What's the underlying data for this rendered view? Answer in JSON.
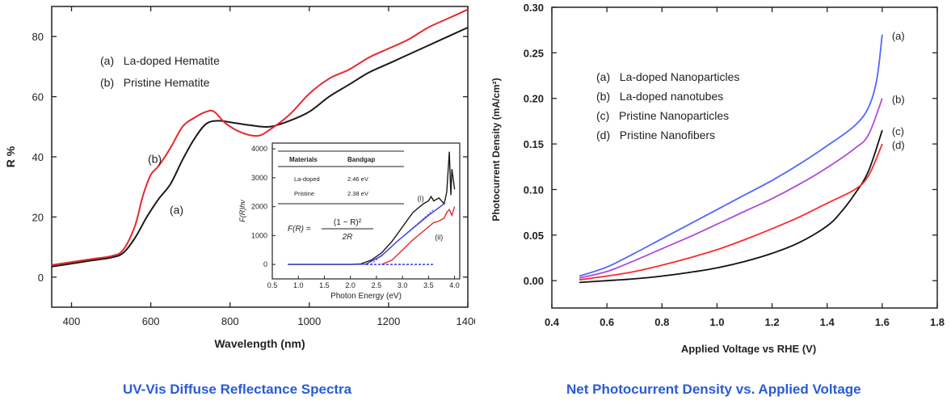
{
  "captions": {
    "left": "UV-Vis Diffuse Reflectance Spectra",
    "right": "Net Photocurrent Density vs. Applied Voltage"
  },
  "chart_data": [
    {
      "type": "line",
      "xlabel": "Wavelength (nm)",
      "ylabel": "R %",
      "xlim": [
        350,
        1400
      ],
      "ylim": [
        -10,
        90
      ],
      "xticks": [
        400,
        600,
        800,
        1000,
        1200,
        1400
      ],
      "yticks": [
        0,
        20,
        40,
        60,
        80
      ],
      "legend": [
        "(a)   La-doped Hematite",
        "(b)   Pristine Hematite"
      ],
      "annotations": [
        {
          "text": "(b)",
          "x": 610,
          "y": 38
        },
        {
          "text": "(a)",
          "x": 665,
          "y": 21
        }
      ],
      "series": [
        {
          "label": "(a)",
          "color": "#1a1a1a",
          "x": [
            350,
            400,
            450,
            500,
            530,
            560,
            590,
            620,
            650,
            680,
            710,
            740,
            770,
            800,
            850,
            900,
            950,
            1000,
            1050,
            1100,
            1150,
            1200,
            1250,
            1300,
            1350,
            1400
          ],
          "y": [
            3.5,
            4.5,
            5.5,
            6.5,
            8,
            13,
            20,
            26,
            31,
            39,
            46,
            51,
            52,
            51.5,
            50.5,
            50,
            52,
            55,
            60,
            64,
            68,
            71,
            74,
            77,
            80,
            83
          ]
        },
        {
          "label": "(b)",
          "color": "#e8282b",
          "x": [
            350,
            400,
            450,
            500,
            530,
            560,
            580,
            600,
            620,
            650,
            680,
            710,
            740,
            760,
            790,
            830,
            870,
            900,
            950,
            1000,
            1050,
            1100,
            1150,
            1200,
            1250,
            1300,
            1350,
            1400
          ],
          "y": [
            4,
            5,
            6,
            7,
            9,
            17,
            27,
            34,
            37,
            43,
            50,
            53,
            55,
            55,
            51,
            48,
            47,
            49,
            54,
            61,
            66,
            69,
            73,
            76,
            79,
            83,
            86,
            89
          ]
        }
      ],
      "inset": {
        "type": "line",
        "xlabel": "Photon Energy (eV)",
        "ylabel": "F(R)hν",
        "xlim": [
          0.5,
          4.1
        ],
        "ylim": [
          -500,
          4200
        ],
        "xticks": [
          "0.5",
          "1.0",
          "1.5",
          "2.0",
          "2.5",
          "3.0",
          "3.5",
          "4.0"
        ],
        "xtick_values": [
          0.5,
          1.0,
          1.5,
          2.0,
          2.5,
          3.0,
          3.5,
          4.0
        ],
        "yticks": [
          0,
          1000,
          2000,
          3000,
          4000
        ],
        "table": {
          "headers": [
            "Materials",
            "Bandgap"
          ],
          "rows": [
            [
              "La-doped",
              "2.46 eV"
            ],
            [
              "Pristine",
              "2.38 eV"
            ]
          ]
        },
        "formula_lhs": "F(R) =",
        "formula_num": "(1 − R)²",
        "formula_den": "2R",
        "annotations": [
          {
            "text": "(i)",
            "x": 3.35,
            "y": 2200
          },
          {
            "text": "(ii)",
            "x": 3.7,
            "y": 850
          }
        ],
        "series": [
          {
            "label": "(i)",
            "color": "#1a1a1a",
            "x": [
              0.8,
              1.5,
              2.0,
              2.2,
              2.4,
              2.6,
              2.8,
              3.0,
              3.2,
              3.4,
              3.5,
              3.55,
              3.6,
              3.7,
              3.8,
              3.85,
              3.9,
              3.93,
              3.95,
              4.0
            ],
            "y": [
              0,
              0,
              0,
              20,
              150,
              400,
              800,
              1300,
              1800,
              2100,
              2200,
              2350,
              2200,
              2300,
              2100,
              2500,
              3900,
              2400,
              3300,
              2600
            ]
          },
          {
            "label": "(ii)",
            "color": "#e8282b",
            "x": [
              2.6,
              2.8,
              3.0,
              3.2,
              3.4,
              3.6,
              3.7,
              3.8,
              3.85,
              3.9,
              3.95,
              4.0
            ],
            "y": [
              0,
              150,
              500,
              850,
              1150,
              1450,
              1500,
              1600,
              1800,
              1900,
              1700,
              2000
            ]
          },
          {
            "label": "fit",
            "color": "#3b3bd6",
            "x": [
              0.8,
              2.0,
              2.3,
              2.6,
              2.9,
              3.2,
              3.5,
              3.8
            ],
            "y": [
              0,
              0,
              10,
              300,
              800,
              1250,
              1700,
              2100
            ]
          }
        ],
        "baseline_color": "#3b3bd6",
        "baseline_dashed": {
          "x": [
            2.3,
            3.6
          ],
          "y": 0
        },
        "tangent": {
          "color": "#3b3bd6",
          "x": [
            2.4,
            3.6
          ],
          "y": [
            0,
            1900
          ]
        }
      }
    },
    {
      "type": "line",
      "xlabel": "Applied Voltage vs RHE (V)",
      "ylabel": "Photocurrent Density (mA/cm²)",
      "xlim": [
        0.4,
        1.8
      ],
      "ylim": [
        -0.03,
        0.3
      ],
      "xticks": [
        "0.4",
        "0.6",
        "0.8",
        "1.0",
        "1.2",
        "1.4",
        "1.6",
        "1.8"
      ],
      "xtick_values": [
        0.4,
        0.6,
        0.8,
        1.0,
        1.2,
        1.4,
        1.6,
        1.8
      ],
      "yticks": [
        "0.00",
        "0.05",
        "0.10",
        "0.15",
        "0.20",
        "0.25",
        "0.30"
      ],
      "ytick_values": [
        0,
        0.05,
        0.1,
        0.15,
        0.2,
        0.25,
        0.3
      ],
      "legend": [
        "(a)   La-doped Nanoparticles",
        "(b)   La-doped nanotubes",
        "(c)   Pristine Nanoparticles",
        "(d)   Pristine Nanofibers"
      ],
      "series": [
        {
          "label": "(a)",
          "color": "#4f67ff",
          "x": [
            0.5,
            0.6,
            0.7,
            0.8,
            0.9,
            1.0,
            1.1,
            1.2,
            1.3,
            1.4,
            1.5,
            1.55,
            1.58,
            1.6
          ],
          "y": [
            0.005,
            0.015,
            0.03,
            0.046,
            0.062,
            0.078,
            0.094,
            0.11,
            0.128,
            0.148,
            0.17,
            0.19,
            0.22,
            0.27
          ]
        },
        {
          "label": "(b)",
          "color": "#b04ad8",
          "x": [
            0.5,
            0.6,
            0.7,
            0.8,
            0.9,
            1.0,
            1.1,
            1.2,
            1.3,
            1.4,
            1.5,
            1.55,
            1.6
          ],
          "y": [
            0.003,
            0.01,
            0.022,
            0.035,
            0.048,
            0.062,
            0.076,
            0.09,
            0.106,
            0.124,
            0.145,
            0.16,
            0.2
          ]
        },
        {
          "label": "(c)",
          "color": "#111111",
          "x": [
            0.5,
            0.6,
            0.7,
            0.8,
            0.9,
            1.0,
            1.1,
            1.2,
            1.3,
            1.4,
            1.45,
            1.5,
            1.55,
            1.6
          ],
          "y": [
            -0.002,
            0,
            0.002,
            0.005,
            0.009,
            0.014,
            0.021,
            0.03,
            0.042,
            0.06,
            0.075,
            0.095,
            0.12,
            0.165
          ]
        },
        {
          "label": "(d)",
          "color": "#ff2a2a",
          "x": [
            0.5,
            0.6,
            0.7,
            0.8,
            0.9,
            1.0,
            1.1,
            1.2,
            1.3,
            1.4,
            1.5,
            1.55,
            1.6
          ],
          "y": [
            0.001,
            0.005,
            0.01,
            0.017,
            0.025,
            0.034,
            0.045,
            0.057,
            0.07,
            0.085,
            0.1,
            0.115,
            0.15
          ]
        }
      ]
    }
  ]
}
